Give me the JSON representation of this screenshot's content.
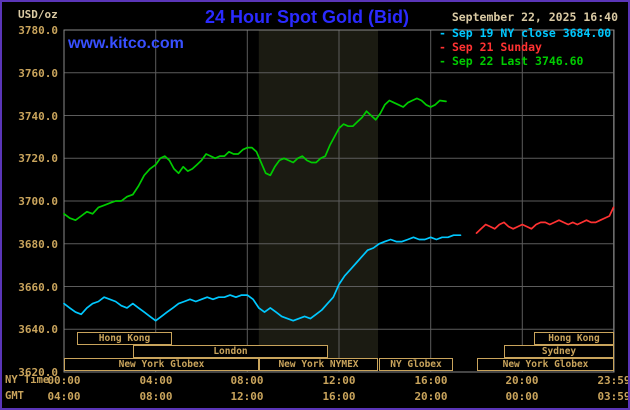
{
  "header": {
    "units_label": "USD/oz",
    "title": "24 Hour Spot Gold (Bid)",
    "datetime": "September 22, 2025 16:40",
    "watermark": "www.kitco.com",
    "legend": [
      {
        "bullet": "-",
        "label": "Sep 19 NY close 3684.00",
        "color": "#00c8ff"
      },
      {
        "bullet": "-",
        "label": "Sep 21 Sunday",
        "color": "#ff3232"
      },
      {
        "bullet": "-",
        "label": "Sep 22 Last 3746.60",
        "color": "#00cc00"
      }
    ]
  },
  "chart_data": {
    "type": "line",
    "title": "24 Hour Spot Gold (Bid)",
    "ylabel": "USD/oz",
    "xlabel": "NY Time / GMT",
    "grid": true,
    "xlim_hours": [
      0,
      24
    ],
    "ylim": [
      3620,
      3780
    ],
    "axes": {
      "ny_label": "NY Time",
      "gmt_label": "GMT",
      "tick_hours": [
        0,
        4,
        8,
        12,
        16,
        20,
        23.9833
      ],
      "ny_ticks": [
        "00:00",
        "04:00",
        "08:00",
        "12:00",
        "16:00",
        "20:00",
        "23:59"
      ],
      "gmt_ticks": [
        "04:00",
        "08:00",
        "12:00",
        "16:00",
        "20:00",
        "00:00",
        "03:59"
      ],
      "y_ticks": [
        "3780.0",
        "3760.0",
        "3740.0",
        "3720.0",
        "3700.0",
        "3680.0",
        "3660.0",
        "3640.0",
        "3620.0"
      ]
    },
    "nymex_band_hours": [
      8.5,
      13.7
    ],
    "series": [
      {
        "id": "sep19",
        "name": "Sep 19 NY close 3684.00",
        "color": "#00c8ff",
        "points": [
          [
            0,
            3652
          ],
          [
            0.25,
            3650
          ],
          [
            0.5,
            3648
          ],
          [
            0.75,
            3647
          ],
          [
            1,
            3650
          ],
          [
            1.25,
            3652
          ],
          [
            1.5,
            3653
          ],
          [
            1.75,
            3655
          ],
          [
            2,
            3654
          ],
          [
            2.25,
            3653
          ],
          [
            2.5,
            3651
          ],
          [
            2.75,
            3650
          ],
          [
            3,
            3652
          ],
          [
            3.25,
            3650
          ],
          [
            3.5,
            3648
          ],
          [
            3.75,
            3646
          ],
          [
            4,
            3644
          ],
          [
            4.25,
            3646
          ],
          [
            4.5,
            3648
          ],
          [
            4.75,
            3650
          ],
          [
            5,
            3652
          ],
          [
            5.25,
            3653
          ],
          [
            5.5,
            3654
          ],
          [
            5.75,
            3653
          ],
          [
            6,
            3654
          ],
          [
            6.25,
            3655
          ],
          [
            6.5,
            3654
          ],
          [
            6.75,
            3655
          ],
          [
            7,
            3655
          ],
          [
            7.25,
            3656
          ],
          [
            7.5,
            3655
          ],
          [
            7.75,
            3656
          ],
          [
            8,
            3656
          ],
          [
            8.25,
            3654
          ],
          [
            8.5,
            3650
          ],
          [
            8.75,
            3648
          ],
          [
            9,
            3650
          ],
          [
            9.25,
            3648
          ],
          [
            9.5,
            3646
          ],
          [
            9.75,
            3645
          ],
          [
            10,
            3644
          ],
          [
            10.25,
            3645
          ],
          [
            10.5,
            3646
          ],
          [
            10.75,
            3645
          ],
          [
            11,
            3647
          ],
          [
            11.25,
            3649
          ],
          [
            11.5,
            3652
          ],
          [
            11.75,
            3655
          ],
          [
            12,
            3661
          ],
          [
            12.25,
            3665
          ],
          [
            12.5,
            3668
          ],
          [
            12.75,
            3671
          ],
          [
            13,
            3674
          ],
          [
            13.25,
            3677
          ],
          [
            13.5,
            3678
          ],
          [
            13.75,
            3680
          ],
          [
            14,
            3681
          ],
          [
            14.25,
            3682
          ],
          [
            14.5,
            3681
          ],
          [
            14.75,
            3681
          ],
          [
            15,
            3682
          ],
          [
            15.25,
            3683
          ],
          [
            15.5,
            3682
          ],
          [
            15.75,
            3682
          ],
          [
            16,
            3683
          ],
          [
            16.25,
            3682
          ],
          [
            16.5,
            3683
          ],
          [
            16.75,
            3683
          ],
          [
            17,
            3684
          ],
          [
            17.3,
            3684
          ]
        ]
      },
      {
        "id": "sep21",
        "name": "Sep 21 Sunday",
        "color": "#ff3232",
        "points": [
          [
            18,
            3685
          ],
          [
            18.2,
            3687
          ],
          [
            18.4,
            3689
          ],
          [
            18.6,
            3688
          ],
          [
            18.8,
            3687
          ],
          [
            19,
            3689
          ],
          [
            19.2,
            3690
          ],
          [
            19.4,
            3688
          ],
          [
            19.6,
            3687
          ],
          [
            19.8,
            3688
          ],
          [
            20,
            3689
          ],
          [
            20.2,
            3688
          ],
          [
            20.4,
            3687
          ],
          [
            20.6,
            3689
          ],
          [
            20.8,
            3690
          ],
          [
            21,
            3690
          ],
          [
            21.2,
            3689
          ],
          [
            21.4,
            3690
          ],
          [
            21.6,
            3691
          ],
          [
            21.8,
            3690
          ],
          [
            22,
            3689
          ],
          [
            22.2,
            3690
          ],
          [
            22.4,
            3689
          ],
          [
            22.6,
            3690
          ],
          [
            22.8,
            3691
          ],
          [
            23,
            3690
          ],
          [
            23.2,
            3690
          ],
          [
            23.4,
            3691
          ],
          [
            23.6,
            3692
          ],
          [
            23.8,
            3693
          ],
          [
            23.98,
            3697
          ]
        ]
      },
      {
        "id": "sep22",
        "name": "Sep 22 Last 3746.60",
        "color": "#00cc00",
        "points": [
          [
            0,
            3694
          ],
          [
            0.25,
            3692
          ],
          [
            0.5,
            3691
          ],
          [
            0.75,
            3693
          ],
          [
            1,
            3695
          ],
          [
            1.25,
            3694
          ],
          [
            1.5,
            3697
          ],
          [
            1.75,
            3698
          ],
          [
            2,
            3699
          ],
          [
            2.25,
            3700
          ],
          [
            2.5,
            3700
          ],
          [
            2.75,
            3702
          ],
          [
            3,
            3703
          ],
          [
            3.25,
            3707
          ],
          [
            3.5,
            3712
          ],
          [
            3.75,
            3715
          ],
          [
            4,
            3717
          ],
          [
            4.2,
            3720
          ],
          [
            4.4,
            3721
          ],
          [
            4.6,
            3719
          ],
          [
            4.8,
            3715
          ],
          [
            5,
            3713
          ],
          [
            5.2,
            3716
          ],
          [
            5.4,
            3714
          ],
          [
            5.6,
            3715
          ],
          [
            5.8,
            3717
          ],
          [
            6,
            3719
          ],
          [
            6.2,
            3722
          ],
          [
            6.4,
            3721
          ],
          [
            6.6,
            3720
          ],
          [
            6.8,
            3721
          ],
          [
            7,
            3721
          ],
          [
            7.2,
            3723
          ],
          [
            7.4,
            3722
          ],
          [
            7.6,
            3722
          ],
          [
            7.8,
            3724
          ],
          [
            8,
            3725
          ],
          [
            8.2,
            3725
          ],
          [
            8.4,
            3723
          ],
          [
            8.6,
            3718
          ],
          [
            8.8,
            3713
          ],
          [
            9,
            3712
          ],
          [
            9.2,
            3716
          ],
          [
            9.4,
            3719
          ],
          [
            9.6,
            3720
          ],
          [
            9.8,
            3719
          ],
          [
            10,
            3718
          ],
          [
            10.2,
            3720
          ],
          [
            10.4,
            3721
          ],
          [
            10.6,
            3719
          ],
          [
            10.8,
            3718
          ],
          [
            11,
            3718
          ],
          [
            11.2,
            3720
          ],
          [
            11.4,
            3721
          ],
          [
            11.6,
            3726
          ],
          [
            11.8,
            3730
          ],
          [
            12,
            3734
          ],
          [
            12.2,
            3736
          ],
          [
            12.4,
            3735
          ],
          [
            12.6,
            3735
          ],
          [
            12.8,
            3737
          ],
          [
            13,
            3739
          ],
          [
            13.2,
            3742
          ],
          [
            13.4,
            3740
          ],
          [
            13.6,
            3738
          ],
          [
            13.8,
            3741
          ],
          [
            14,
            3745
          ],
          [
            14.2,
            3747
          ],
          [
            14.4,
            3746
          ],
          [
            14.6,
            3745
          ],
          [
            14.8,
            3744
          ],
          [
            15,
            3746
          ],
          [
            15.2,
            3747
          ],
          [
            15.4,
            3748
          ],
          [
            15.6,
            3747
          ],
          [
            15.8,
            3745
          ],
          [
            16,
            3744
          ],
          [
            16.2,
            3745
          ],
          [
            16.4,
            3747
          ],
          [
            16.67,
            3746.6
          ]
        ]
      }
    ],
    "sessions": [
      {
        "label": "Hong Kong",
        "row": 0,
        "start": 0.55,
        "end": 4.7
      },
      {
        "label": "Hong Kong",
        "row": 0,
        "start": 20.5,
        "end": 23.98
      },
      {
        "label": "London",
        "row": 1,
        "start": 3.0,
        "end": 11.5
      },
      {
        "label": "Sydney",
        "row": 1,
        "start": 19.2,
        "end": 23.98
      },
      {
        "label": "New York Globex",
        "row": 2,
        "start": 0.0,
        "end": 8.5
      },
      {
        "label": "New York NYMEX",
        "row": 2,
        "start": 8.5,
        "end": 13.7
      },
      {
        "label": "NY Globex",
        "row": 2,
        "start": 13.75,
        "end": 17.0
      },
      {
        "label": "New York Globex",
        "row": 2,
        "start": 18.0,
        "end": 23.98
      }
    ]
  },
  "colors": {
    "background": "#000000",
    "frame": "#5a35b8",
    "grid": "#5c5c5c",
    "plot_border": "#8a8a8a",
    "band": "#1b1b12",
    "tan": "#c9a45c",
    "header_text": "#d9c9a3",
    "title_blue": "#2a2aff",
    "watermark_blue": "#3850ff",
    "cyan": "#00c8ff",
    "red": "#ff3232",
    "green": "#00cc00"
  }
}
